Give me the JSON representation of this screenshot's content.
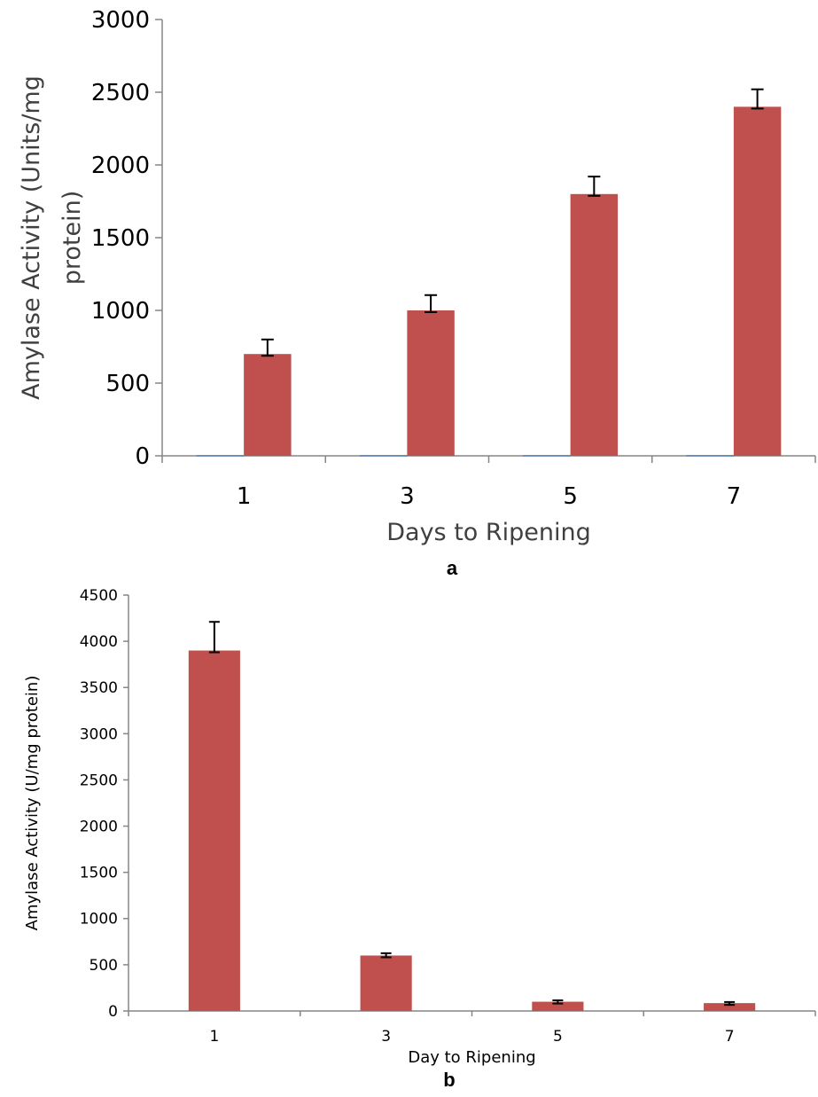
{
  "chart_data": [
    {
      "type": "bar",
      "panel_label": "a",
      "categories": [
        "1",
        "3",
        "5",
        "7"
      ],
      "series": [
        {
          "values": [
            5,
            5,
            5,
            5
          ],
          "color": "#4F81BD"
        },
        {
          "values": [
            700,
            1000,
            1800,
            2400
          ],
          "errors": [
            100,
            105,
            120,
            120
          ],
          "color": "#C0504D"
        }
      ],
      "xlabel": "Days to Ripening",
      "ylabel_lines": [
        "Amylase Activity (Units/mg",
        "protein)"
      ],
      "ylim": [
        0,
        3000
      ],
      "yticks": [
        0,
        500,
        1000,
        1500,
        2000,
        2500,
        3000
      ],
      "grid": false,
      "legend": "none"
    },
    {
      "type": "bar",
      "panel_label": "b",
      "categories": [
        "1",
        "3",
        "5",
        "7"
      ],
      "series": [
        {
          "values": [
            3900,
            600,
            100,
            85
          ],
          "errors": [
            310,
            25,
            15,
            12
          ],
          "color": "#C0504D"
        }
      ],
      "xlabel": "Day to Ripening",
      "ylabel": "Amylase Activity (U/mg protein)",
      "ylim": [
        0,
        4500
      ],
      "yticks": [
        0,
        500,
        1000,
        1500,
        2000,
        2500,
        3000,
        3500,
        4000,
        4500
      ],
      "grid": false,
      "legend": "none"
    }
  ]
}
